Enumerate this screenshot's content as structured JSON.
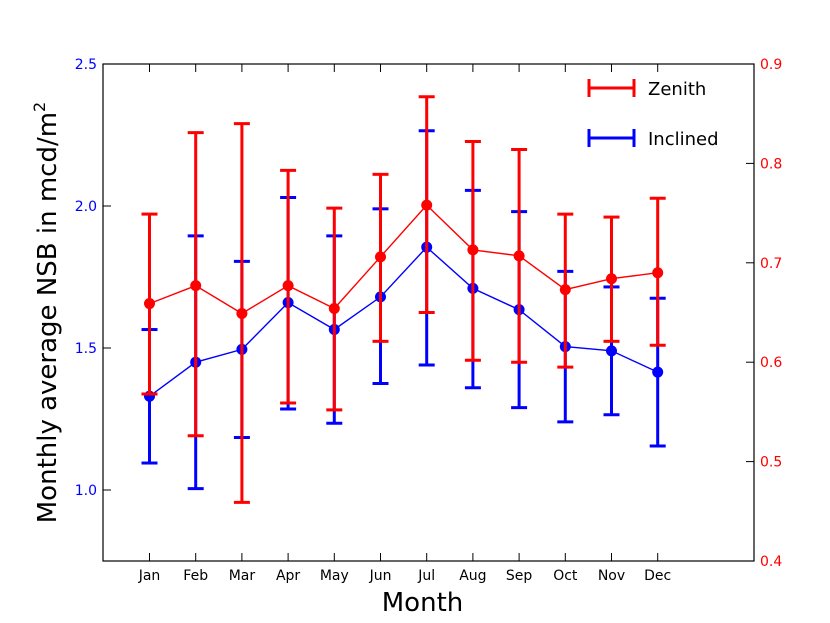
{
  "chart_data": {
    "type": "line",
    "xlabel": "Month",
    "ylabel_left": "Monthly average NSB in mcd/m",
    "ylabel_sup": "2",
    "categories": [
      "Jan",
      "Feb",
      "Mar",
      "Apr",
      "May",
      "Jun",
      "Jul",
      "Aug",
      "Sep",
      "Oct",
      "Nov",
      "Dec"
    ],
    "left_axis": {
      "range": [
        0.75,
        2.5
      ],
      "ticks": [
        "1.0",
        "1.5",
        "2.0",
        "2.5"
      ],
      "tick_values": [
        1.0,
        1.5,
        2.0,
        2.5
      ],
      "color": "#0000ff"
    },
    "right_axis": {
      "range": [
        0.4,
        0.9
      ],
      "ticks": [
        "0.4",
        "0.5",
        "0.6",
        "0.7",
        "0.8",
        "0.9"
      ],
      "tick_values": [
        0.4,
        0.5,
        0.6,
        0.7,
        0.8,
        0.9
      ],
      "color": "#ff0000"
    },
    "series": [
      {
        "name": "Zenith",
        "axis": "right",
        "color": "#ff0000",
        "values": [
          0.659,
          0.677,
          0.649,
          0.677,
          0.654,
          0.706,
          0.758,
          0.713,
          0.707,
          0.673,
          0.684,
          0.69
        ],
        "lower": [
          0.568,
          0.526,
          0.459,
          0.559,
          0.552,
          0.621,
          0.65,
          0.602,
          0.6,
          0.595,
          0.621,
          0.617
        ],
        "upper": [
          0.749,
          0.831,
          0.84,
          0.793,
          0.755,
          0.789,
          0.867,
          0.822,
          0.814,
          0.749,
          0.746,
          0.765
        ]
      },
      {
        "name": "Inclined",
        "axis": "left",
        "color": "#0000ff",
        "values": [
          1.33,
          1.45,
          1.495,
          1.66,
          1.565,
          1.68,
          1.855,
          1.71,
          1.635,
          1.505,
          1.49,
          1.415
        ],
        "lower": [
          1.095,
          1.005,
          1.185,
          1.285,
          1.235,
          1.375,
          1.44,
          1.36,
          1.29,
          1.24,
          1.265,
          1.155
        ],
        "upper": [
          1.565,
          1.895,
          1.805,
          2.03,
          1.895,
          1.99,
          2.265,
          2.055,
          1.98,
          1.77,
          1.715,
          1.675
        ]
      }
    ],
    "legend": {
      "position": "top-right",
      "entries": [
        "Zenith",
        "Inclined"
      ]
    }
  }
}
